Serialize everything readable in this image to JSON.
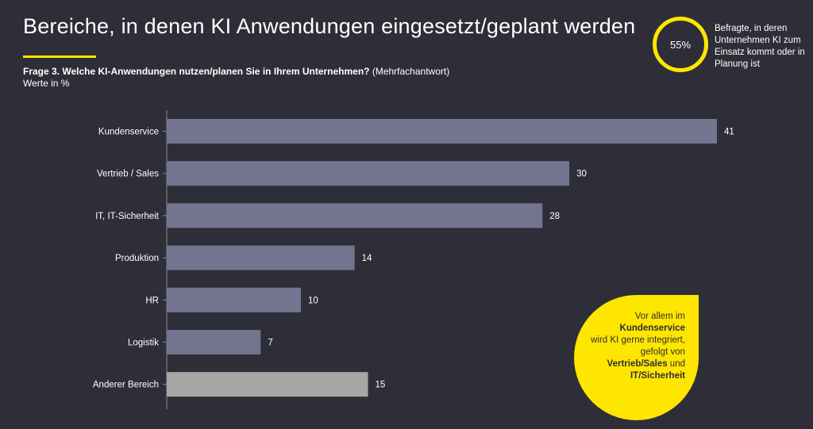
{
  "title": "Bereiche, in denen KI Anwendungen eingesetzt/geplant werden",
  "question": {
    "bold": "Frage 3. Welche KI-Anwendungen nutzen/planen Sie in Ihrem Unternehmen?",
    "normal": " (Mehrfachantwort)",
    "unit": "Werte in %"
  },
  "ring": {
    "value": "55%",
    "note": "Befragte, in deren Unternehmen KI zum Einsatz kommt oder in Planung ist"
  },
  "callout": {
    "line1": "Vor allem im",
    "bold1": "Kundenservice",
    "line2": "wird KI gerne integriert,",
    "line3": "gefolgt von",
    "bold2": "Vertrieb/Sales",
    "line4": " und",
    "bold3": "IT/Sicherheit"
  },
  "colors": {
    "background": "#2e2e38",
    "bar": "#747490",
    "bar_other": "#a6a6a6",
    "accent": "#ffe600"
  },
  "chart_data": {
    "type": "bar",
    "orientation": "horizontal",
    "categories": [
      "Kundenservice",
      "Vertrieb / Sales",
      "IT, IT-Sicherheit",
      "Produktion",
      "HR",
      "Logistik",
      "Anderer Bereich"
    ],
    "values": [
      41,
      30,
      28,
      14,
      10,
      7,
      15
    ],
    "highlight": [
      false,
      false,
      false,
      false,
      false,
      false,
      true
    ],
    "title": "",
    "xlabel": "",
    "ylabel": "",
    "xlim": [
      0,
      41
    ],
    "grid": false
  }
}
